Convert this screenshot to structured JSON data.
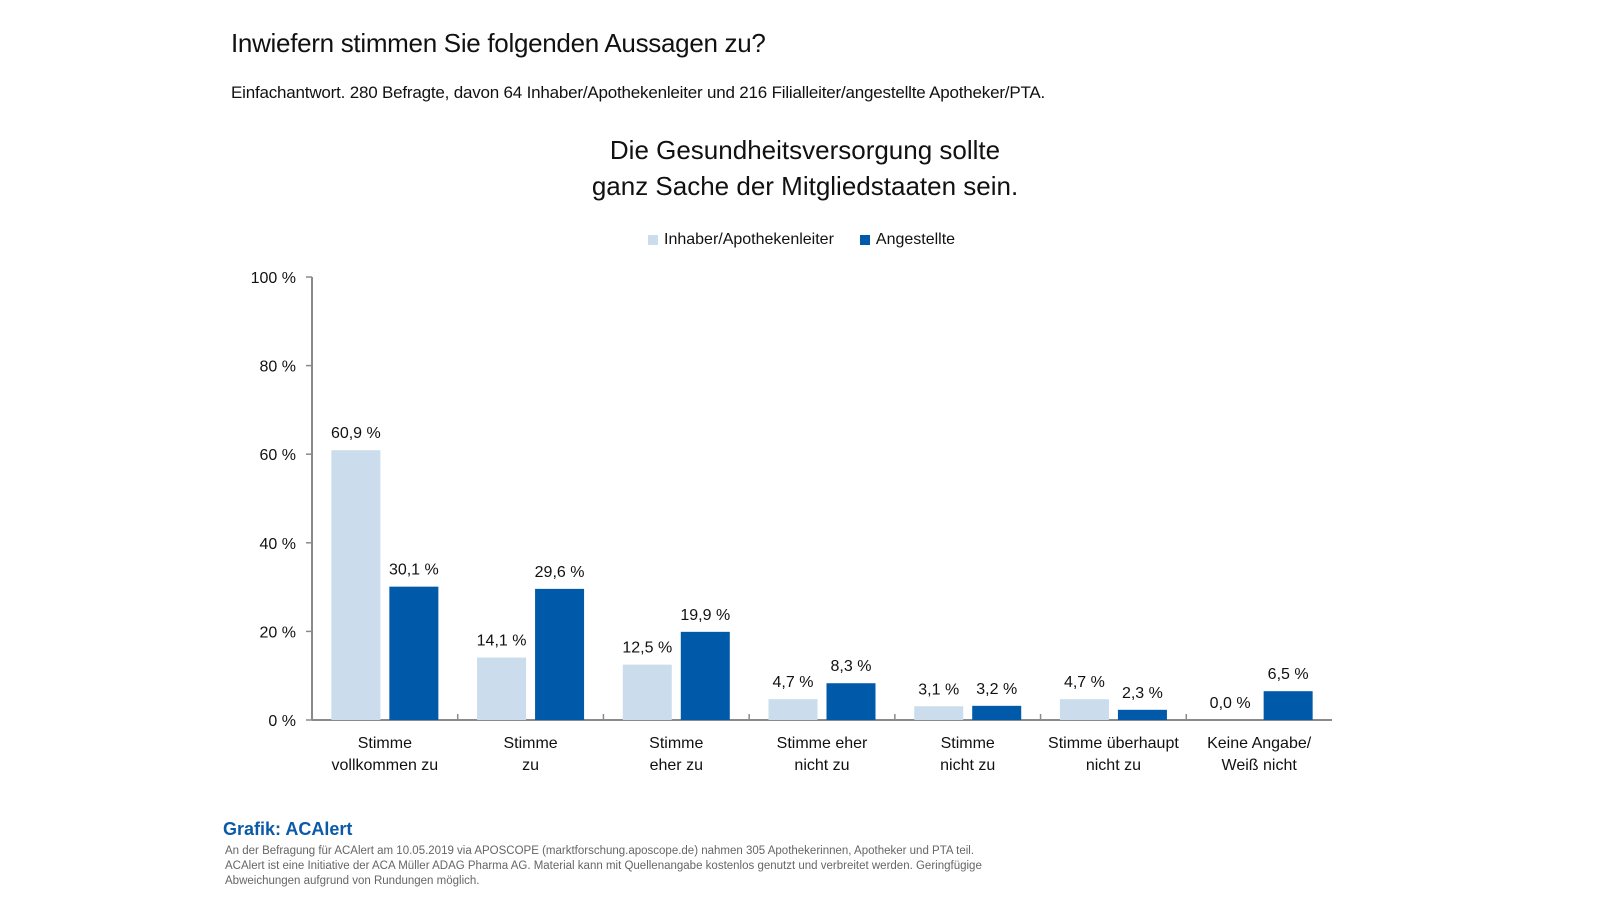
{
  "header": {
    "question": "Inwiefern stimmen Sie folgenden Aussagen zu?",
    "subtitle": "Einfachantwort. 280 Befragte, davon 64 Inhaber/Apothekenleiter und 216 Filialleiter/angestellte Apotheker/PTA."
  },
  "chart_data": {
    "type": "bar",
    "title_lines": [
      "Die Gesundheitsversorgung sollte",
      "ganz Sache der Mitgliedstaaten sein."
    ],
    "xlabel": "",
    "ylabel": "",
    "ylim": [
      0,
      100
    ],
    "yticks": [
      0,
      20,
      40,
      60,
      80,
      100
    ],
    "ytick_labels": [
      "0 %",
      "20 %",
      "40 %",
      "60 %",
      "80 %",
      "100 %"
    ],
    "grid": false,
    "legend_position": "top-center",
    "categories": [
      [
        "Stimme",
        "vollkommen zu"
      ],
      [
        "Stimme",
        "zu"
      ],
      [
        "Stimme",
        "eher zu"
      ],
      [
        "Stimme eher",
        "nicht zu"
      ],
      [
        "Stimme",
        "nicht zu"
      ],
      [
        "Stimme überhaupt",
        "nicht zu"
      ],
      [
        "Keine Angabe/",
        "Weiß nicht"
      ]
    ],
    "series": [
      {
        "name": "Inhaber/Apothekenleiter",
        "color": "#cbdcec",
        "values": [
          60.9,
          14.1,
          12.5,
          4.7,
          3.1,
          4.7,
          0.0
        ],
        "labels": [
          "60,9 %",
          "14,1 %",
          "12,5 %",
          "4,7 %",
          "3,1 %",
          "4,7 %",
          "0,0 %"
        ]
      },
      {
        "name": "Angestellte",
        "color": "#0059a9",
        "values": [
          30.1,
          29.6,
          19.9,
          8.3,
          3.2,
          2.3,
          6.5
        ],
        "labels": [
          "30,1 %",
          "29,6 %",
          "19,9 %",
          "8,3 %",
          "3,2 %",
          "2,3 %",
          "6,5 %"
        ]
      }
    ]
  },
  "footer": {
    "brand": "Grafik: ACAlert",
    "note": "An der Befragung für ACAlert am 10.05.2019 via APOSCOPE (marktforschung.aposcope.de) nahmen 305 Apothekerinnen, Apotheker und PTA teil. ACAlert ist eine Initiative der ACA Müller ADAG Pharma AG. Material kann mit Quellenangabe kostenlos genutzt und verbreitet werden. Geringfügige Abweichungen aufgrund von Rundungen möglich."
  }
}
